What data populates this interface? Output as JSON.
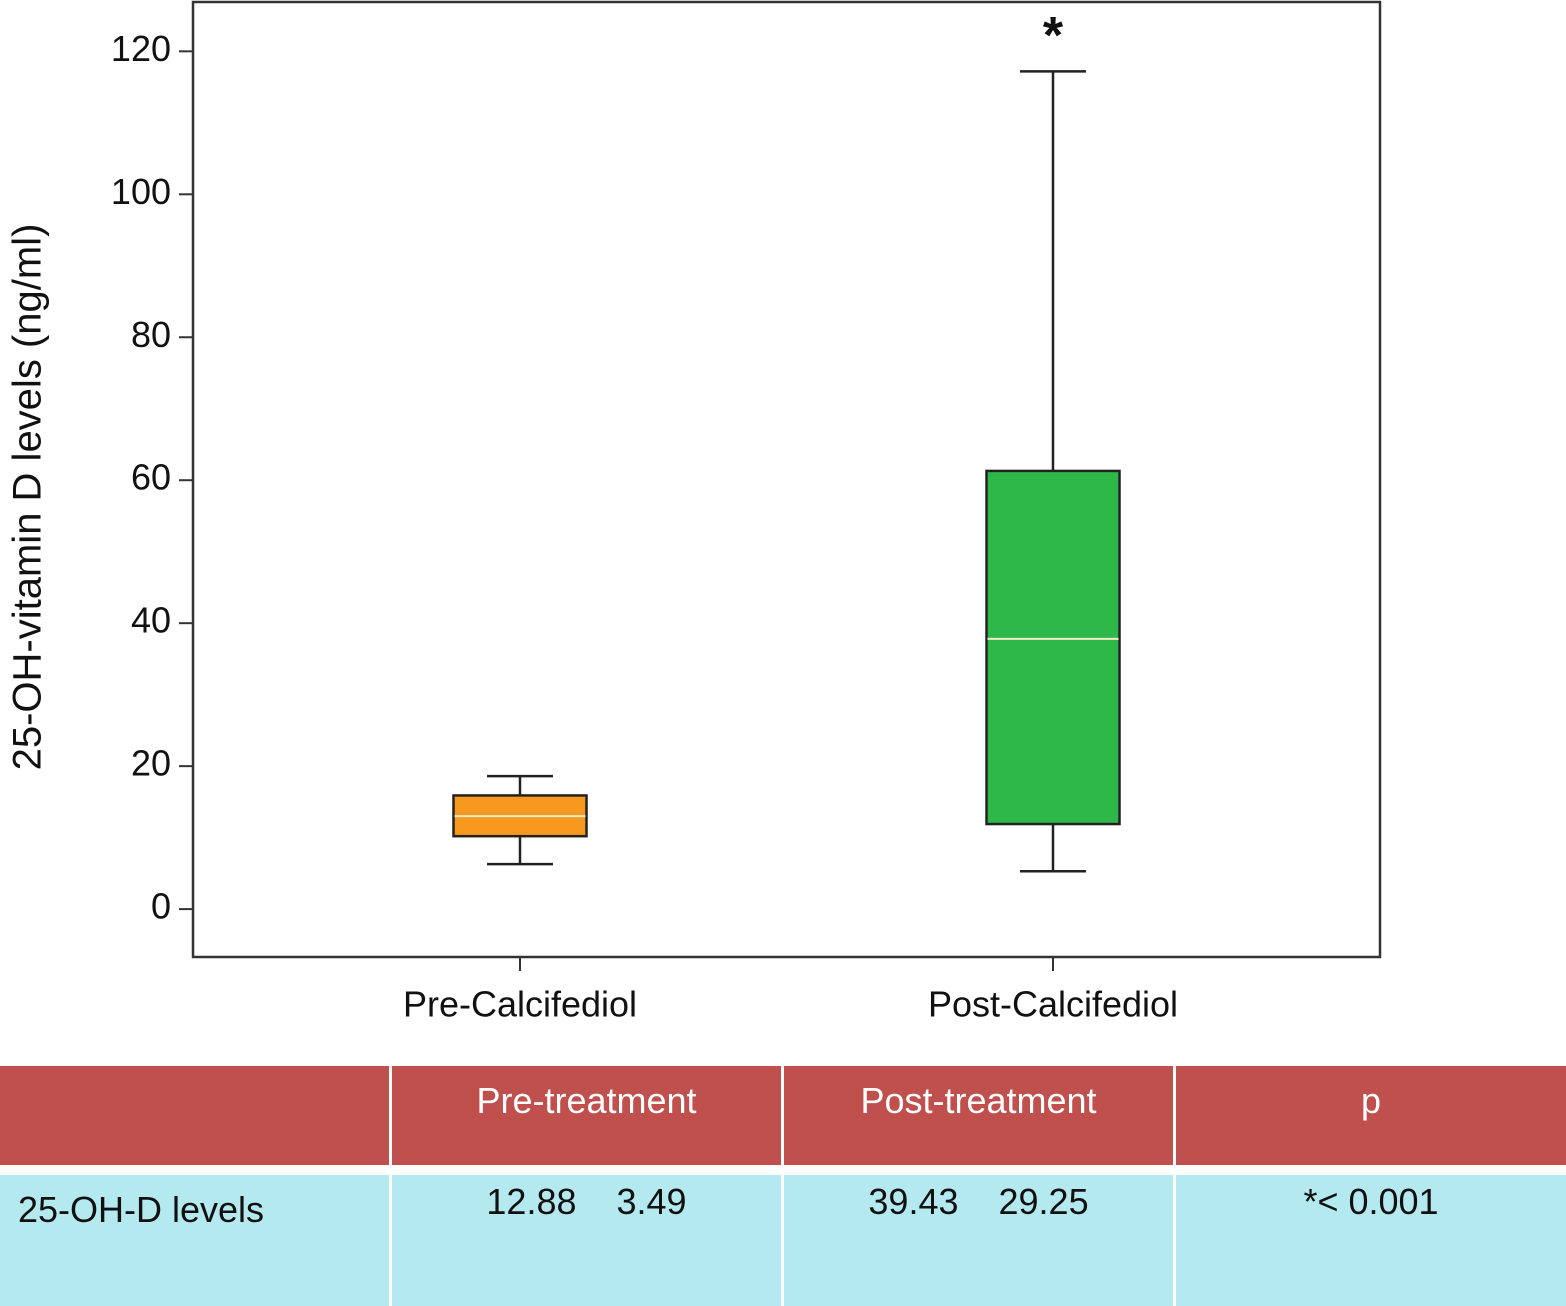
{
  "chart_data": {
    "type": "box",
    "ylabel": "25-OH-vitamin D levels (ng/ml)",
    "categories": [
      "Pre-Calcifediol",
      "Post-Calcifediol"
    ],
    "boxes": [
      {
        "whisker_low": 6.3,
        "q1": 10.2,
        "median": 13.0,
        "q3": 15.9,
        "whisker_high": 18.6,
        "color": "#f7991e"
      },
      {
        "whisker_low": 5.3,
        "q1": 11.9,
        "median": 37.8,
        "q3": 61.3,
        "whisker_high": 117.2,
        "color": "#2eb84a"
      }
    ],
    "annotation": "*",
    "ylim": [
      -6.7,
      126.9
    ],
    "yticks": [
      0,
      20,
      40,
      60,
      80,
      100,
      120
    ]
  },
  "table": {
    "header": [
      "Pre-treatment",
      "Post-treatment",
      "p"
    ],
    "rows": [
      [
        "25-OH-D levels",
        "12.88",
        "3.49",
        "39.43",
        "29.25",
        "*< 0.001"
      ]
    ]
  }
}
